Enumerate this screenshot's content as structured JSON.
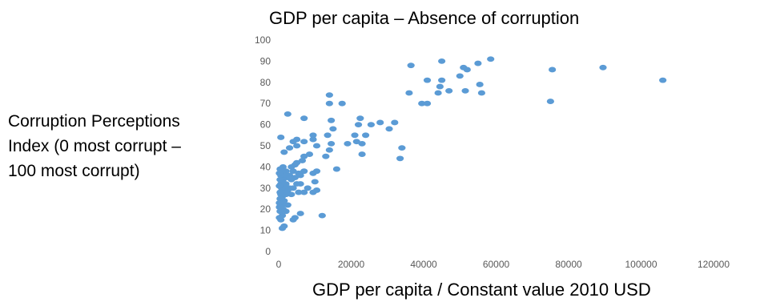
{
  "chart_data": {
    "type": "scatter",
    "title": "GDP per capita – Absence of corruption",
    "xlabel": "GDP per capita  / Constant value 2010 USD",
    "ylabel": "Corruption Perceptions\nIndex (0 most corrupt –\n100 most corrupt)",
    "xlim": [
      0,
      120000
    ],
    "ylim": [
      0,
      100
    ],
    "x_ticks": [
      "0",
      "20000",
      "40000",
      "60000",
      "80000",
      "100000",
      "120000"
    ],
    "y_ticks": [
      "0",
      "10",
      "20",
      "30",
      "40",
      "50",
      "60",
      "70",
      "80",
      "90",
      "100"
    ],
    "grid": false,
    "legend": "none",
    "marker_color": "#5B9BD5",
    "series": [
      {
        "points": [
          [
            106000,
            81
          ],
          [
            89500,
            87
          ],
          [
            75500,
            86
          ],
          [
            75000,
            71
          ],
          [
            58500,
            91
          ],
          [
            55000,
            89
          ],
          [
            55500,
            79
          ],
          [
            56000,
            75
          ],
          [
            52000,
            86
          ],
          [
            51000,
            87
          ],
          [
            50000,
            83
          ],
          [
            51500,
            76
          ],
          [
            47000,
            76
          ],
          [
            45000,
            90
          ],
          [
            45000,
            81
          ],
          [
            44500,
            78
          ],
          [
            44000,
            75
          ],
          [
            41000,
            81
          ],
          [
            41000,
            70
          ],
          [
            39500,
            70
          ],
          [
            36500,
            88
          ],
          [
            36000,
            75
          ],
          [
            34000,
            49
          ],
          [
            33500,
            44
          ],
          [
            32000,
            61
          ],
          [
            30500,
            58
          ],
          [
            28000,
            61
          ],
          [
            25500,
            60
          ],
          [
            24000,
            55
          ],
          [
            22500,
            63
          ],
          [
            22000,
            60
          ],
          [
            21000,
            55
          ],
          [
            21500,
            52
          ],
          [
            23000,
            51
          ],
          [
            23000,
            46
          ],
          [
            19000,
            51
          ],
          [
            17500,
            70
          ],
          [
            16000,
            39
          ],
          [
            15000,
            58
          ],
          [
            14500,
            51
          ],
          [
            14500,
            62
          ],
          [
            14000,
            74
          ],
          [
            14000,
            70
          ],
          [
            13500,
            55
          ],
          [
            14000,
            48
          ],
          [
            13000,
            45
          ],
          [
            12000,
            17
          ],
          [
            10500,
            50
          ],
          [
            10500,
            38
          ],
          [
            10000,
            33
          ],
          [
            10500,
            29
          ],
          [
            9500,
            37
          ],
          [
            9500,
            53
          ],
          [
            9500,
            55
          ],
          [
            9500,
            28
          ],
          [
            8500,
            46
          ],
          [
            8000,
            30
          ],
          [
            7000,
            63
          ],
          [
            7000,
            52
          ],
          [
            7000,
            45
          ],
          [
            7000,
            38
          ],
          [
            7000,
            28
          ],
          [
            6500,
            43
          ],
          [
            6000,
            36
          ],
          [
            6000,
            32
          ],
          [
            6000,
            18
          ],
          [
            5500,
            28
          ],
          [
            5500,
            37
          ],
          [
            5000,
            53
          ],
          [
            5000,
            50
          ],
          [
            5000,
            42
          ],
          [
            5000,
            32
          ],
          [
            4500,
            16
          ],
          [
            4500,
            41
          ],
          [
            4500,
            35
          ],
          [
            4000,
            52
          ],
          [
            4000,
            38
          ],
          [
            4000,
            30
          ],
          [
            4000,
            15
          ],
          [
            3500,
            40
          ],
          [
            3500,
            34
          ],
          [
            3500,
            27
          ],
          [
            3000,
            30
          ],
          [
            3000,
            36
          ],
          [
            3000,
            49
          ],
          [
            2500,
            35
          ],
          [
            2500,
            29
          ],
          [
            2500,
            22
          ],
          [
            2500,
            65
          ],
          [
            2000,
            38
          ],
          [
            2000,
            32
          ],
          [
            2000,
            27
          ],
          [
            2000,
            19
          ],
          [
            1500,
            47
          ],
          [
            1500,
            36
          ],
          [
            1500,
            31
          ],
          [
            1500,
            24
          ],
          [
            1500,
            12
          ],
          [
            1200,
            40
          ],
          [
            1200,
            34
          ],
          [
            1200,
            28
          ],
          [
            1200,
            20
          ],
          [
            1000,
            38
          ],
          [
            1000,
            33
          ],
          [
            1000,
            26
          ],
          [
            1000,
            22
          ],
          [
            1000,
            17
          ],
          [
            1000,
            11
          ],
          [
            800,
            30
          ],
          [
            800,
            24
          ],
          [
            600,
            54
          ],
          [
            600,
            36
          ],
          [
            600,
            32
          ],
          [
            600,
            27
          ],
          [
            600,
            21
          ],
          [
            600,
            15
          ],
          [
            400,
            39
          ],
          [
            400,
            34
          ],
          [
            400,
            28
          ],
          [
            400,
            25
          ],
          [
            400,
            19
          ],
          [
            200,
            37
          ],
          [
            200,
            31
          ],
          [
            200,
            23
          ],
          [
            200,
            21
          ],
          [
            200,
            16
          ]
        ]
      }
    ]
  }
}
